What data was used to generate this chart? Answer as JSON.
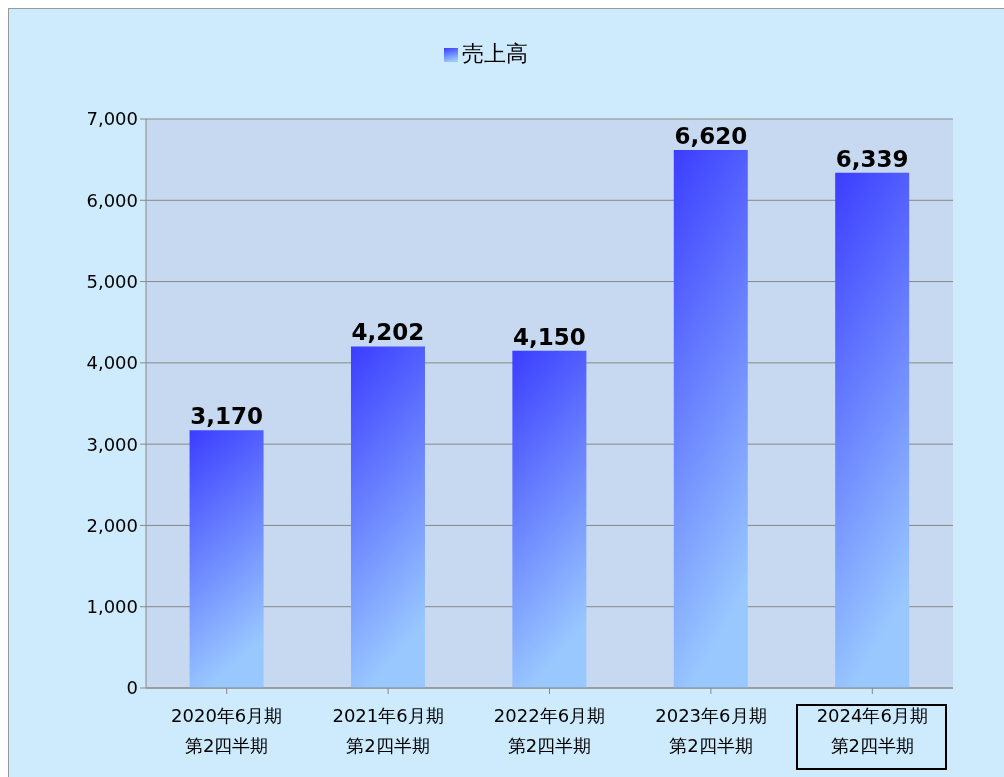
{
  "chart_data": {
    "type": "bar",
    "categories": [
      "2020年6月期第2四半期",
      "2021年6月期第2四半期",
      "2022年6月期第2四半期",
      "2023年6月期第2四半期",
      "2024年6月期第2四半期"
    ],
    "series": [
      {
        "name": "売上高",
        "color": "#3b3dff",
        "values": [
          3170,
          4202,
          4150,
          6620,
          6339
        ],
        "value_labels": [
          "3,170",
          "4,202",
          "4,150",
          "6,620",
          "6,339"
        ]
      }
    ],
    "ylim": [
      0,
      7000
    ],
    "yticks": [
      {
        "value": 0,
        "label": "0"
      },
      {
        "value": 1000,
        "label": "1,000"
      },
      {
        "value": 2000,
        "label": "2,000"
      },
      {
        "value": 3000,
        "label": "3,000"
      },
      {
        "value": 4000,
        "label": "4,000"
      },
      {
        "value": 5000,
        "label": "5,000"
      },
      {
        "value": 6000,
        "label": "6,000"
      },
      {
        "value": 7000,
        "label": "7,000"
      }
    ],
    "grid": "y",
    "legend": "top"
  }
}
